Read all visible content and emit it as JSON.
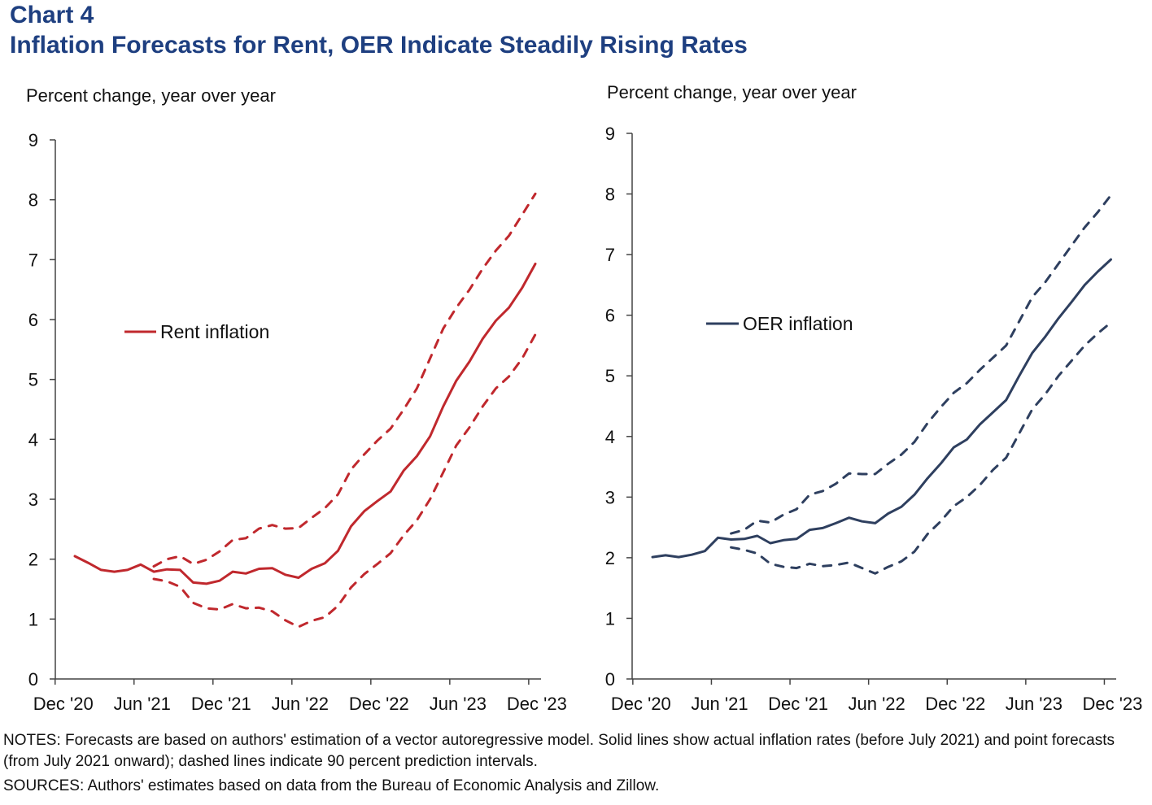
{
  "header": {
    "chart_number": "Chart 4",
    "title": "Inflation Forecasts for Rent, OER Indicate Steadily Rising Rates"
  },
  "footer": {
    "notes": "NOTES: Forecasts are based on authors' estimation of a vector autoregressive model. Solid lines show actual inflation rates (before July 2021) and point forecasts (from July 2021 onward); dashed lines indicate 90 percent prediction intervals.",
    "sources": "SOURCES: Authors' estimates based on data from the Bureau of Economic Analysis and Zillow."
  },
  "chart_data": [
    {
      "type": "line",
      "ylabel": "Percent change, year over year",
      "ylim": [
        0,
        9
      ],
      "yticks": [
        "0",
        "1",
        "2",
        "3",
        "4",
        "5",
        "6",
        "7",
        "8",
        "9"
      ],
      "xticks": [
        "Dec '20",
        "Jun '21",
        "Dec '21",
        "Jun '22",
        "Dec '22",
        "Jun '23",
        "Dec '23"
      ],
      "x_start": "Jan 2021",
      "x_end": "Dec 2023",
      "color": "#c0282d",
      "legend_position": "left-middle",
      "series": [
        {
          "name": "Rent inflation",
          "style": "solid",
          "start_index": 0,
          "values": [
            2.05,
            1.94,
            1.82,
            1.79,
            1.82,
            1.91,
            1.79,
            1.83,
            1.82,
            1.61,
            1.59,
            1.64,
            1.79,
            1.76,
            1.84,
            1.85,
            1.74,
            1.69,
            1.84,
            1.93,
            2.14,
            2.55,
            2.8,
            2.97,
            3.13,
            3.48,
            3.72,
            4.05,
            4.55,
            4.98,
            5.3,
            5.68,
            5.98,
            6.2,
            6.53,
            6.93
          ]
        },
        {
          "style": "dashed",
          "start_index": 6,
          "values": [
            1.88,
            2.0,
            2.05,
            1.92,
            1.99,
            2.13,
            2.32,
            2.35,
            2.51,
            2.57,
            2.51,
            2.52,
            2.69,
            2.85,
            3.08,
            3.5,
            3.75,
            3.98,
            4.18,
            4.5,
            4.85,
            5.35,
            5.85,
            6.2,
            6.5,
            6.85,
            7.15,
            7.4,
            7.75,
            8.1
          ]
        },
        {
          "style": "dashed",
          "start_index": 6,
          "values": [
            1.67,
            1.63,
            1.54,
            1.27,
            1.18,
            1.16,
            1.25,
            1.18,
            1.19,
            1.13,
            0.98,
            0.87,
            0.97,
            1.03,
            1.22,
            1.53,
            1.75,
            1.92,
            2.1,
            2.4,
            2.65,
            3.0,
            3.45,
            3.9,
            4.2,
            4.55,
            4.85,
            5.05,
            5.35,
            5.75
          ]
        }
      ]
    },
    {
      "type": "line",
      "ylabel": "Percent change, year over year",
      "ylim": [
        0,
        9
      ],
      "yticks": [
        "0",
        "1",
        "2",
        "3",
        "4",
        "5",
        "6",
        "7",
        "8",
        "9"
      ],
      "xticks": [
        "Dec '20",
        "Jun '21",
        "Dec '21",
        "Jun '22",
        "Dec '22",
        "Jun '23",
        "Dec '23"
      ],
      "x_start": "Jan 2021",
      "x_end": "Dec 2023",
      "color": "#2e3f5f",
      "legend_position": "left-middle",
      "series": [
        {
          "name": "OER inflation",
          "style": "solid",
          "start_index": 0,
          "values": [
            2.01,
            2.04,
            2.01,
            2.05,
            2.11,
            2.33,
            2.3,
            2.31,
            2.36,
            2.24,
            2.29,
            2.31,
            2.46,
            2.49,
            2.57,
            2.66,
            2.6,
            2.57,
            2.73,
            2.84,
            3.04,
            3.31,
            3.55,
            3.82,
            3.95,
            4.2,
            4.4,
            4.6,
            5.0,
            5.38,
            5.65,
            5.95,
            6.22,
            6.5,
            6.72,
            6.92
          ]
        },
        {
          "style": "dashed",
          "start_index": 6,
          "values": [
            2.4,
            2.46,
            2.61,
            2.58,
            2.71,
            2.8,
            3.04,
            3.1,
            3.22,
            3.39,
            3.38,
            3.38,
            3.55,
            3.7,
            3.91,
            4.22,
            4.48,
            4.72,
            4.88,
            5.1,
            5.3,
            5.5,
            5.9,
            6.3,
            6.55,
            6.85,
            7.15,
            7.45,
            7.7,
            7.98
          ]
        },
        {
          "style": "dashed",
          "start_index": 6,
          "values": [
            2.17,
            2.13,
            2.07,
            1.9,
            1.85,
            1.83,
            1.9,
            1.86,
            1.88,
            1.92,
            1.83,
            1.74,
            1.85,
            1.94,
            2.1,
            2.39,
            2.6,
            2.85,
            3.0,
            3.2,
            3.45,
            3.65,
            4.05,
            4.45,
            4.7,
            5.0,
            5.25,
            5.5,
            5.7,
            5.88
          ]
        }
      ]
    }
  ]
}
